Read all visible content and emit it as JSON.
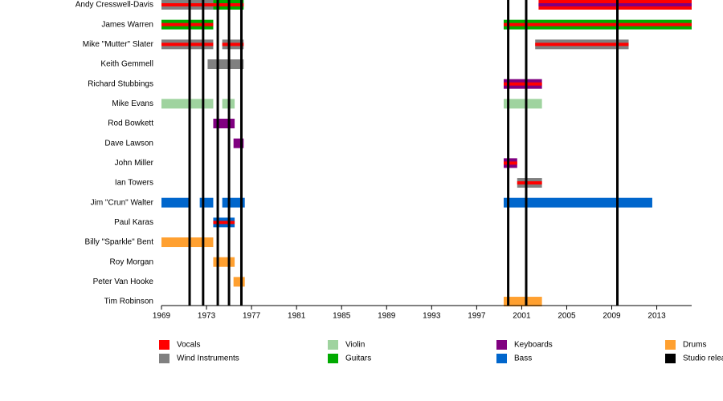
{
  "chart_data": {
    "type": "timeline",
    "xlim": [
      1969,
      2016.1
    ],
    "xticks": [
      1969,
      1973,
      1977,
      1981,
      1985,
      1989,
      1993,
      1997,
      2001,
      2005,
      2009,
      2013
    ],
    "roles": [
      {
        "name": "Vocals",
        "color": "#ff0000"
      },
      {
        "name": "Wind Instruments",
        "color": "#808080"
      },
      {
        "name": "Violin",
        "color": "#9fd39f"
      },
      {
        "name": "Guitars",
        "color": "#00aa00"
      },
      {
        "name": "Keyboards",
        "color": "#800080"
      },
      {
        "name": "Bass",
        "color": "#0066cc"
      },
      {
        "name": "Drums",
        "color": "#ffa030"
      }
    ],
    "releases": {
      "name": "Studio release",
      "color": "#000000",
      "x": [
        1971.5,
        1972.7,
        1974.0,
        1975.0,
        1976.1,
        1999.8,
        2001.4,
        2009.5
      ]
    },
    "members": [
      {
        "name": "Andy Cresswell-Davis",
        "bars": [
          {
            "start": 1969,
            "end": 1973.6,
            "roles": [
              1,
              0
            ]
          },
          {
            "start": 1973.6,
            "end": 1976.3,
            "roles": [
              3,
              0
            ]
          },
          {
            "start": 2002.5,
            "end": 2016.1,
            "roles": [
              0,
              4
            ]
          }
        ]
      },
      {
        "name": "James Warren",
        "bars": [
          {
            "start": 1969,
            "end": 1973.6,
            "roles": [
              3,
              0
            ]
          },
          {
            "start": 1999.4,
            "end": 2016.1,
            "roles": [
              3,
              0
            ]
          }
        ]
      },
      {
        "name": "Mike \"Mutter\" Slater",
        "bars": [
          {
            "start": 1969,
            "end": 1973.6,
            "roles": [
              1,
              0
            ]
          },
          {
            "start": 1974.4,
            "end": 1976.3,
            "roles": [
              1,
              0
            ]
          },
          {
            "start": 2002.2,
            "end": 2010.5,
            "roles": [
              1,
              0
            ]
          }
        ]
      },
      {
        "name": "Keith Gemmell",
        "bars": [
          {
            "start": 1973.1,
            "end": 1976.3,
            "roles": [
              1
            ]
          }
        ]
      },
      {
        "name": "Richard Stubbings",
        "bars": [
          {
            "start": 1999.4,
            "end": 2002.8,
            "roles": [
              4,
              0
            ]
          }
        ]
      },
      {
        "name": "Mike Evans",
        "bars": [
          {
            "start": 1969,
            "end": 1973.6,
            "roles": [
              2
            ]
          },
          {
            "start": 1974.4,
            "end": 1975.5,
            "roles": [
              2
            ]
          },
          {
            "start": 1999.4,
            "end": 2002.8,
            "roles": [
              2
            ]
          }
        ]
      },
      {
        "name": "Rod Bowkett",
        "bars": [
          {
            "start": 1973.6,
            "end": 1975.5,
            "roles": [
              4
            ]
          }
        ]
      },
      {
        "name": "Dave Lawson",
        "bars": [
          {
            "start": 1975.4,
            "end": 1976.3,
            "roles": [
              4
            ]
          }
        ]
      },
      {
        "name": "John Miller",
        "bars": [
          {
            "start": 1999.4,
            "end": 2000.6,
            "roles": [
              4,
              0
            ]
          }
        ]
      },
      {
        "name": "Ian Towers",
        "bars": [
          {
            "start": 2000.6,
            "end": 2002.8,
            "roles": [
              1,
              0
            ]
          }
        ]
      },
      {
        "name": "Jim \"Crun\" Walter",
        "bars": [
          {
            "start": 1969,
            "end": 1971.5,
            "roles": [
              5
            ]
          },
          {
            "start": 1972.4,
            "end": 1973.6,
            "roles": [
              5
            ]
          },
          {
            "start": 1974.4,
            "end": 1976.4,
            "roles": [
              5
            ]
          },
          {
            "start": 1999.4,
            "end": 2012.6,
            "roles": [
              5
            ]
          }
        ]
      },
      {
        "name": "Paul Karas",
        "bars": [
          {
            "start": 1973.6,
            "end": 1975.5,
            "roles": [
              5,
              0
            ]
          }
        ]
      },
      {
        "name": "Billy \"Sparkle\" Bent",
        "bars": [
          {
            "start": 1969,
            "end": 1973.6,
            "roles": [
              6
            ]
          }
        ]
      },
      {
        "name": "Roy Morgan",
        "bars": [
          {
            "start": 1973.6,
            "end": 1975.5,
            "roles": [
              6
            ]
          }
        ]
      },
      {
        "name": "Peter Van Hooke",
        "bars": [
          {
            "start": 1975.4,
            "end": 1976.4,
            "roles": [
              6
            ]
          }
        ]
      },
      {
        "name": "Tim Robinson",
        "bars": [
          {
            "start": 1999.4,
            "end": 2002.8,
            "roles": [
              6
            ]
          }
        ]
      }
    ]
  }
}
